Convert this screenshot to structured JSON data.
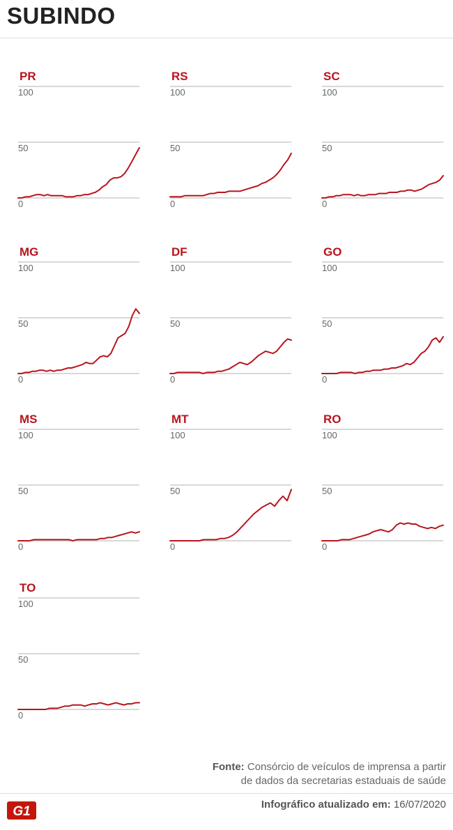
{
  "header": {
    "title": "SUBINDO"
  },
  "tick_labels": {
    "max": "100",
    "mid": "50",
    "min": "0"
  },
  "colors": {
    "line": "#b8141d",
    "label": "#b8141d",
    "grid": "#999999",
    "logo": "#c4170c"
  },
  "chart_data": [
    {
      "type": "line",
      "title": "PR",
      "ylim": [
        0,
        100
      ],
      "y": [
        0,
        0,
        1,
        1,
        2,
        3,
        3,
        2,
        3,
        2,
        2,
        2,
        2,
        1,
        1,
        1,
        2,
        2,
        3,
        3,
        4,
        5,
        7,
        10,
        12,
        16,
        18,
        18,
        19,
        22,
        27,
        33,
        39,
        45
      ]
    },
    {
      "type": "line",
      "title": "RS",
      "ylim": [
        0,
        100
      ],
      "y": [
        1,
        1,
        1,
        1,
        2,
        2,
        2,
        2,
        2,
        2,
        3,
        4,
        4,
        5,
        5,
        5,
        6,
        6,
        6,
        6,
        7,
        8,
        9,
        10,
        11,
        13,
        14,
        16,
        18,
        21,
        25,
        30,
        34,
        40
      ]
    },
    {
      "type": "line",
      "title": "SC",
      "ylim": [
        0,
        100
      ],
      "y": [
        0,
        0,
        1,
        1,
        2,
        2,
        3,
        3,
        3,
        2,
        3,
        2,
        2,
        3,
        3,
        3,
        4,
        4,
        4,
        5,
        5,
        5,
        6,
        6,
        7,
        7,
        6,
        7,
        8,
        10,
        12,
        13,
        14,
        16,
        20
      ]
    },
    {
      "type": "line",
      "title": "MG",
      "ylim": [
        0,
        100
      ],
      "y": [
        0,
        0,
        1,
        1,
        2,
        2,
        3,
        3,
        2,
        3,
        2,
        3,
        3,
        4,
        5,
        5,
        6,
        7,
        8,
        10,
        9,
        9,
        12,
        15,
        16,
        15,
        18,
        25,
        32,
        34,
        36,
        42,
        52,
        58,
        54
      ]
    },
    {
      "type": "line",
      "title": "DF",
      "ylim": [
        0,
        100
      ],
      "y": [
        0,
        0,
        1,
        1,
        1,
        1,
        1,
        1,
        1,
        0,
        1,
        1,
        1,
        2,
        2,
        3,
        4,
        6,
        8,
        10,
        9,
        8,
        10,
        13,
        16,
        18,
        20,
        19,
        18,
        20,
        24,
        28,
        31,
        30
      ]
    },
    {
      "type": "line",
      "title": "GO",
      "ylim": [
        0,
        100
      ],
      "y": [
        0,
        0,
        0,
        0,
        0,
        1,
        1,
        1,
        1,
        0,
        1,
        1,
        2,
        2,
        3,
        3,
        3,
        4,
        4,
        5,
        5,
        6,
        7,
        9,
        8,
        10,
        14,
        18,
        20,
        24,
        30,
        32,
        28,
        33
      ]
    },
    {
      "type": "line",
      "title": "MS",
      "ylim": [
        0,
        100
      ],
      "y": [
        0,
        0,
        0,
        0,
        1,
        1,
        1,
        1,
        1,
        1,
        1,
        1,
        1,
        1,
        0,
        1,
        1,
        1,
        1,
        1,
        1,
        2,
        2,
        3,
        3,
        4,
        5,
        6,
        7,
        8,
        7,
        8
      ]
    },
    {
      "type": "line",
      "title": "MT",
      "ylim": [
        0,
        100
      ],
      "y": [
        0,
        0,
        0,
        0,
        0,
        0,
        0,
        0,
        1,
        1,
        1,
        1,
        2,
        2,
        3,
        5,
        8,
        12,
        16,
        20,
        24,
        27,
        30,
        32,
        34,
        31,
        36,
        40,
        36,
        46
      ]
    },
    {
      "type": "line",
      "title": "RO",
      "ylim": [
        0,
        100
      ],
      "y": [
        0,
        0,
        0,
        0,
        0,
        1,
        1,
        1,
        2,
        3,
        4,
        5,
        6,
        8,
        9,
        10,
        9,
        8,
        10,
        14,
        16,
        15,
        16,
        15,
        15,
        13,
        12,
        11,
        12,
        11,
        13,
        14
      ]
    },
    {
      "type": "line",
      "title": "TO",
      "ylim": [
        0,
        100
      ],
      "y": [
        0,
        0,
        0,
        0,
        0,
        0,
        0,
        0,
        1,
        1,
        1,
        2,
        3,
        3,
        4,
        4,
        4,
        3,
        4,
        5,
        5,
        6,
        5,
        4,
        5,
        6,
        5,
        4,
        5,
        5,
        6,
        6
      ]
    }
  ],
  "footer": {
    "source_label": "Fonte:",
    "source_line1": "Consórcio de veículos de imprensa a partir",
    "source_line2": "de dados da secretarias estaduais de saúde",
    "updated_label": "Infográfico atualizado em:",
    "updated_value": "16/07/2020",
    "logo_text": "G1"
  }
}
